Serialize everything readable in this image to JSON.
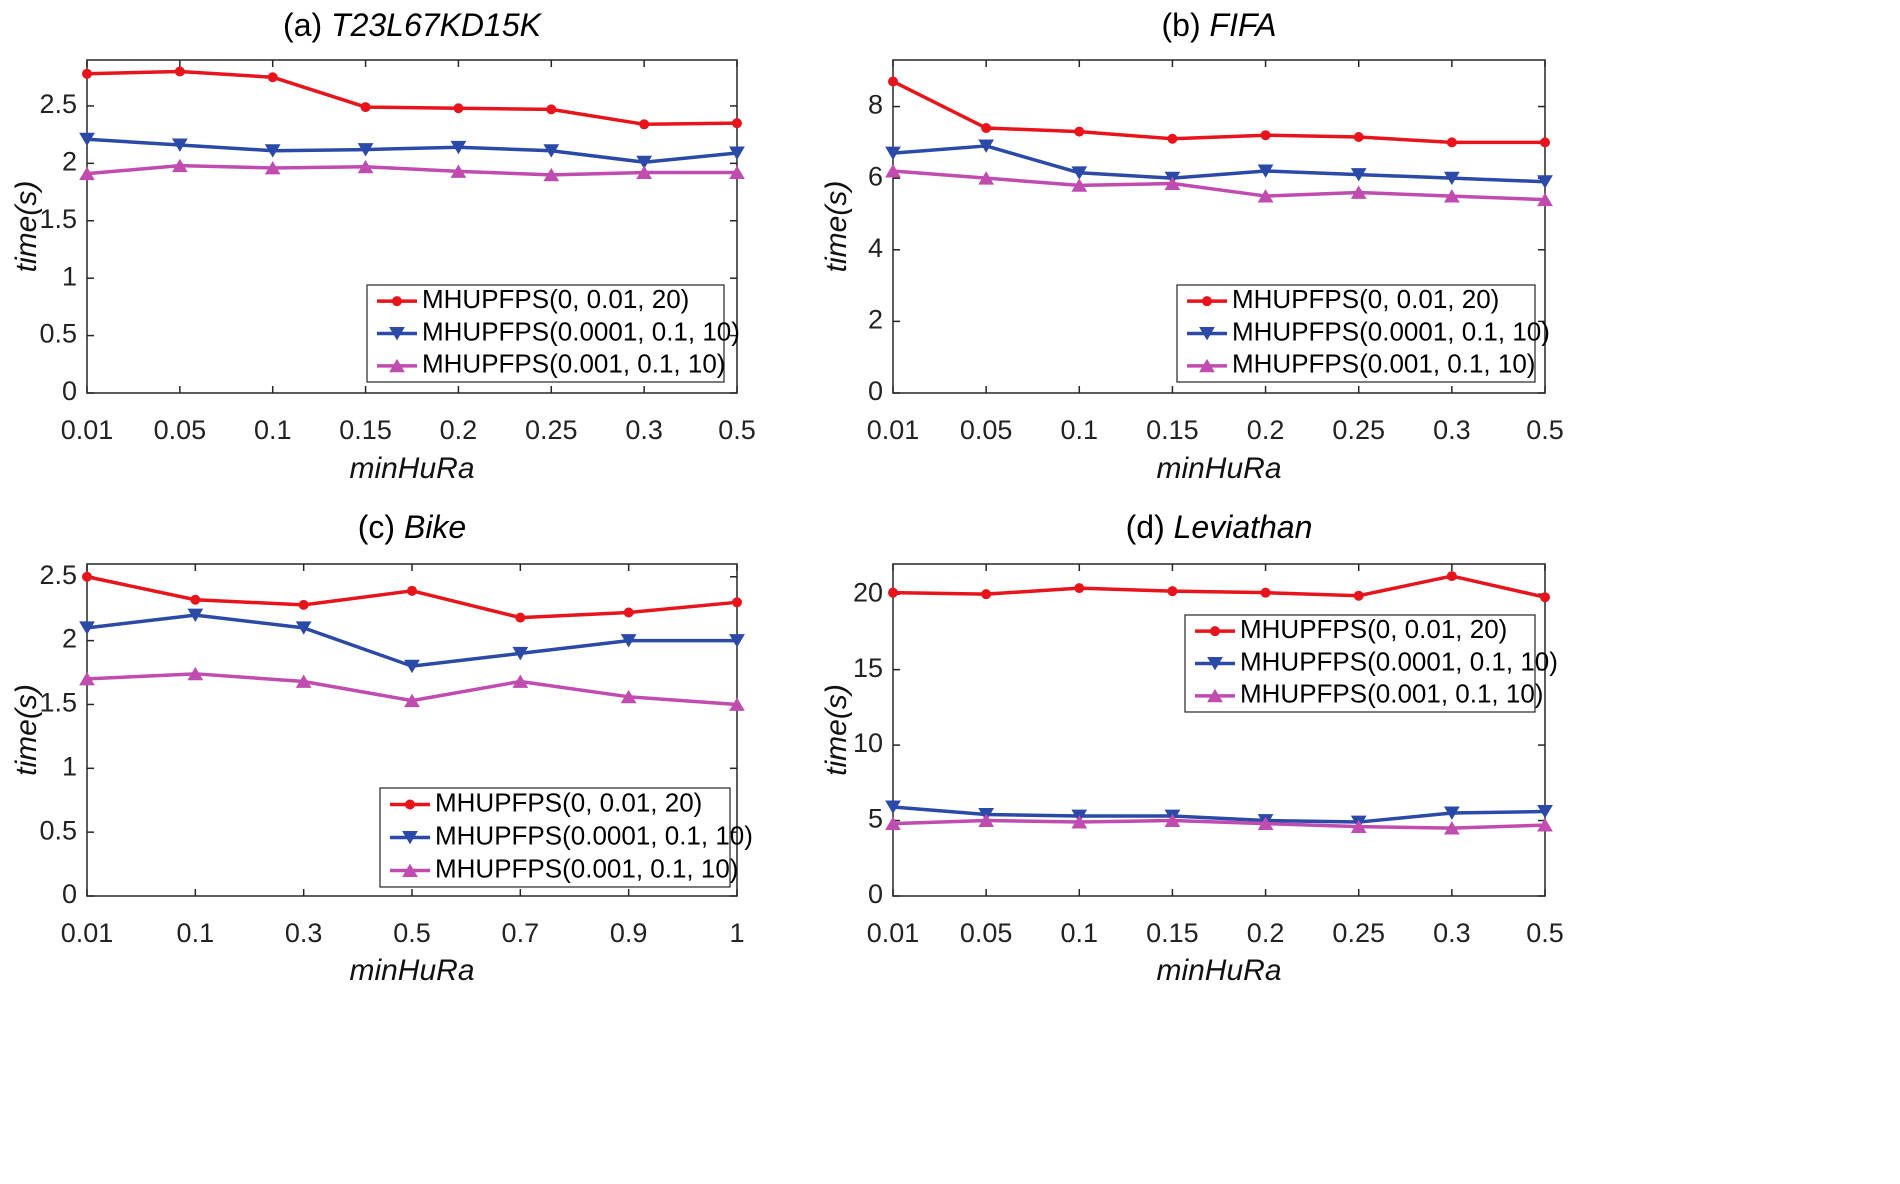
{
  "figure": {
    "colors": {
      "series_a": "#e8141b",
      "series_b": "#2b4aa8",
      "series_c": "#c04cb0",
      "axis": "#262626"
    }
  },
  "chart_data": [
    {
      "type": "line",
      "title_prefix": "(a)",
      "title_name": "T23L67KD15K",
      "xlabel": "minHuRa",
      "ylabel": "time(s)",
      "categories": [
        "0.01",
        "0.05",
        "0.1",
        "0.15",
        "0.2",
        "0.25",
        "0.3",
        "0.5"
      ],
      "yticks": [
        "0",
        "0.5",
        "1",
        "1.5",
        "2",
        "2.5"
      ],
      "ytick_values": [
        0,
        0.5,
        1,
        1.5,
        2,
        2.5
      ],
      "ylim": [
        0,
        2.9
      ],
      "legend_position": "lower-right",
      "series": [
        {
          "name": "MHUPFPS(0, 0.01, 20)",
          "marker": "circle",
          "values": [
            2.78,
            2.8,
            2.75,
            2.49,
            2.48,
            2.47,
            2.34,
            2.35
          ]
        },
        {
          "name": "MHUPFPS(0.0001, 0.1, 10)",
          "marker": "triangle-down",
          "values": [
            2.21,
            2.16,
            2.11,
            2.12,
            2.14,
            2.11,
            2.01,
            2.09
          ]
        },
        {
          "name": "MHUPFPS(0.001, 0.1, 10)",
          "marker": "triangle-up",
          "values": [
            1.91,
            1.98,
            1.96,
            1.97,
            1.93,
            1.9,
            1.92,
            1.92
          ]
        }
      ]
    },
    {
      "type": "line",
      "title_prefix": "(b)",
      "title_name": "FIFA",
      "xlabel": "minHuRa",
      "ylabel": "time(s)",
      "categories": [
        "0.01",
        "0.05",
        "0.1",
        "0.15",
        "0.2",
        "0.25",
        "0.3",
        "0.5"
      ],
      "yticks": [
        "0",
        "2",
        "4",
        "6",
        "8"
      ],
      "ytick_values": [
        0,
        2,
        4,
        6,
        8
      ],
      "ylim": [
        0,
        9.3
      ],
      "legend_position": "lower-right",
      "series": [
        {
          "name": "MHUPFPS(0, 0.01, 20)",
          "marker": "circle",
          "values": [
            8.7,
            7.4,
            7.3,
            7.1,
            7.2,
            7.15,
            7.0,
            7.0
          ]
        },
        {
          "name": "MHUPFPS(0.0001, 0.1, 10)",
          "marker": "triangle-down",
          "values": [
            6.7,
            6.9,
            6.15,
            6.0,
            6.2,
            6.1,
            6.0,
            5.9
          ]
        },
        {
          "name": "MHUPFPS(0.001, 0.1, 10)",
          "marker": "triangle-up",
          "values": [
            6.2,
            6.0,
            5.8,
            5.85,
            5.5,
            5.6,
            5.5,
            5.4
          ]
        }
      ]
    },
    {
      "type": "line",
      "title_prefix": "(c)",
      "title_name": "Bike",
      "xlabel": "minHuRa",
      "ylabel": "time(s)",
      "categories": [
        "0.01",
        "0.1",
        "0.3",
        "0.5",
        "0.7",
        "0.9",
        "1"
      ],
      "yticks": [
        "0",
        "0.5",
        "1",
        "1.5",
        "2",
        "2.5"
      ],
      "ytick_values": [
        0,
        0.5,
        1,
        1.5,
        2,
        2.5
      ],
      "ylim": [
        0,
        2.6
      ],
      "legend_position": "lower-right",
      "series": [
        {
          "name": "MHUPFPS(0, 0.01, 20)",
          "marker": "circle",
          "values": [
            2.5,
            2.32,
            2.28,
            2.39,
            2.18,
            2.22,
            2.3
          ]
        },
        {
          "name": "MHUPFPS(0.0001, 0.1, 10)",
          "marker": "triangle-down",
          "values": [
            2.1,
            2.2,
            2.1,
            1.8,
            1.9,
            2.0,
            2.0
          ]
        },
        {
          "name": "MHUPFPS(0.001, 0.1, 10)",
          "marker": "triangle-up",
          "values": [
            1.7,
            1.74,
            1.68,
            1.53,
            1.68,
            1.56,
            1.5
          ]
        }
      ]
    },
    {
      "type": "line",
      "title_prefix": "(d)",
      "title_name": "Leviathan",
      "xlabel": "minHuRa",
      "ylabel": "time(s)",
      "categories": [
        "0.01",
        "0.05",
        "0.1",
        "0.15",
        "0.2",
        "0.25",
        "0.3",
        "0.5"
      ],
      "yticks": [
        "0",
        "5",
        "10",
        "15",
        "20"
      ],
      "ytick_values": [
        0,
        5,
        10,
        15,
        20
      ],
      "ylim": [
        0,
        22
      ],
      "legend_position": "upper-right",
      "series": [
        {
          "name": "MHUPFPS(0, 0.01, 20)",
          "marker": "circle",
          "values": [
            20.1,
            20.0,
            20.4,
            20.2,
            20.1,
            19.9,
            21.2,
            19.8
          ]
        },
        {
          "name": "MHUPFPS(0.0001, 0.1, 10)",
          "marker": "triangle-down",
          "values": [
            5.9,
            5.4,
            5.3,
            5.3,
            5.0,
            4.9,
            5.5,
            5.6
          ]
        },
        {
          "name": "MHUPFPS(0.001, 0.1, 10)",
          "marker": "triangle-up",
          "values": [
            4.8,
            5.0,
            4.9,
            5.0,
            4.8,
            4.6,
            4.5,
            4.7
          ]
        }
      ]
    }
  ]
}
